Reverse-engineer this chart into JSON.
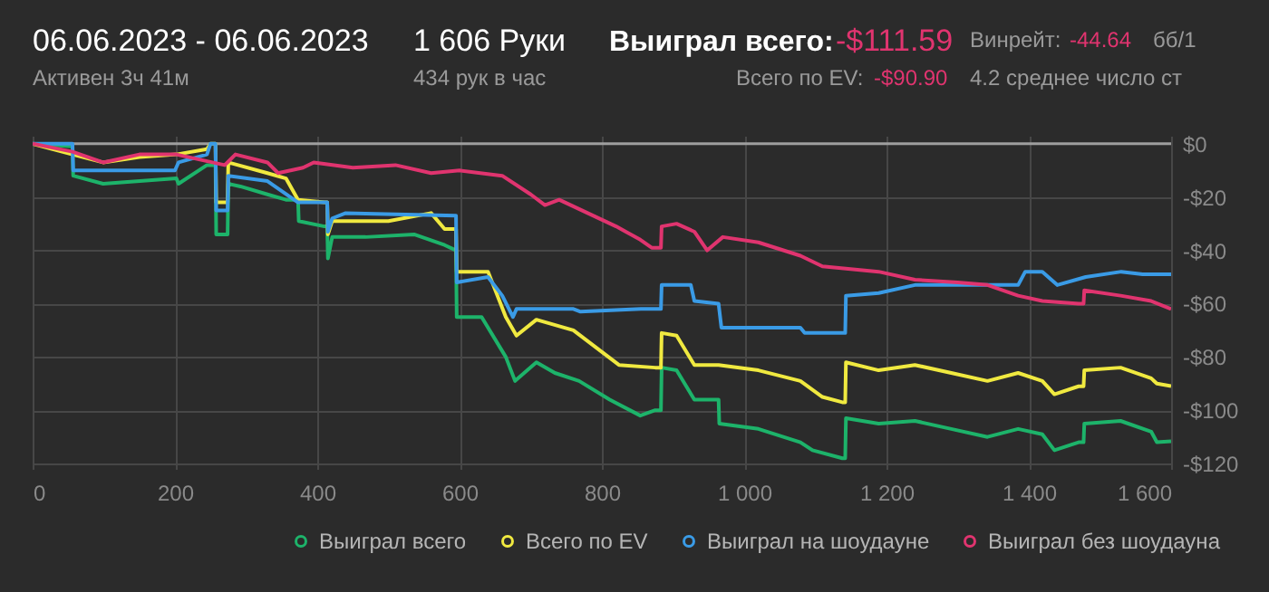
{
  "chart_data": {
    "type": "line",
    "title": "06.06.2023 - 06.06.2023",
    "subtitle": "Активен 3ч 41м",
    "annotations": [
      "1 606 Руки",
      "434 рук в час",
      "Выиграл всего:",
      "-$111.59",
      "Всего по EV:",
      "-$90.90",
      "Винрейт:",
      "-44.64",
      "бб/1",
      "4.2 среднее число ст"
    ],
    "xlim": [
      0,
      1600
    ],
    "xticks": [
      0,
      200,
      400,
      600,
      800,
      {
        "value": 1000,
        "label": "1 000"
      },
      {
        "value": 1200,
        "label": "1 200"
      },
      {
        "value": 1400,
        "label": "1 400"
      },
      {
        "value": 1600,
        "label": "1 600"
      }
    ],
    "ylim": [
      -122,
      3
    ],
    "yticks": [
      {
        "value": 0,
        "label": "$0"
      },
      {
        "value": -20,
        "label": "-$20"
      },
      {
        "value": -40,
        "label": "-$40"
      },
      {
        "value": -60,
        "label": "-$60"
      },
      {
        "value": -80,
        "label": "-$80"
      },
      {
        "value": -100,
        "label": "-$100"
      },
      {
        "value": -120,
        "label": "-$120"
      }
    ],
    "grid": true,
    "legend": "bottom",
    "marker": "none",
    "line_style": "solid",
    "ref_lines": [
      {
        "axis": "y",
        "value": 0,
        "color": "#9e9e9e"
      }
    ],
    "series": [
      {
        "name": "Выиграл всего",
        "color": "#1db36a",
        "x": [
          0,
          56,
          57,
          99,
          202,
          205,
          245,
          257,
          258,
          274,
          275,
          292,
          330,
          356,
          373,
          374,
          410,
          414,
          415,
          421,
          468,
          536,
          579,
          595,
          596,
          631,
          665,
          678,
          708,
          734,
          768,
          811,
          854,
          875,
          883,
          884,
          905,
          930,
          964,
          965,
          1020,
          1079,
          1096,
          1138,
          1142,
          1143,
          1189,
          1240,
          1291,
          1342,
          1385,
          1419,
          1436,
          1470,
          1477,
          1478,
          1529,
          1572,
          1580,
          1600
        ],
        "values": [
          0,
          -1,
          -12,
          -15,
          -13,
          -15,
          -8,
          -8,
          -34,
          -34,
          -15,
          -16,
          -19,
          -21,
          -21,
          -29,
          -31,
          -31,
          -43,
          -35,
          -35,
          -34,
          -38,
          -40,
          -65,
          -65,
          -80,
          -89,
          -82,
          -86,
          -89,
          -96,
          -102,
          -100,
          -100,
          -84,
          -85,
          -96,
          -96,
          -105,
          -107,
          -112,
          -115,
          -118,
          -118,
          -103,
          -105,
          -104,
          -107,
          -110,
          -107,
          -109,
          -115,
          -112,
          -112,
          -105,
          -104,
          -108,
          -112,
          -111.6
        ]
      },
      {
        "name": "Всего по EV",
        "color": "#f0e940",
        "x": [
          0,
          56,
          99,
          150,
          202,
          245,
          250,
          257,
          258,
          274,
          275,
          330,
          356,
          373,
          410,
          414,
          415,
          421,
          500,
          560,
          579,
          595,
          596,
          640,
          665,
          680,
          708,
          760,
          824,
          875,
          883,
          884,
          905,
          930,
          964,
          1020,
          1079,
          1110,
          1138,
          1142,
          1143,
          1189,
          1240,
          1291,
          1342,
          1385,
          1419,
          1436,
          1470,
          1477,
          1478,
          1529,
          1572,
          1580,
          1600
        ],
        "values": [
          0,
          -4,
          -7,
          -5,
          -4,
          -2,
          0,
          0,
          -22,
          -22,
          -7,
          -11,
          -13,
          -21,
          -22,
          -22,
          -34,
          -29,
          -29,
          -26,
          -32,
          -32,
          -48,
          -48,
          -65,
          -72,
          -66,
          -70,
          -83,
          -84,
          -84,
          -71,
          -72,
          -83,
          -83,
          -85,
          -89,
          -95,
          -97,
          -97,
          -82,
          -85,
          -83,
          -86,
          -89,
          -86,
          -89,
          -94,
          -91,
          -91,
          -85,
          -84,
          -88,
          -90,
          -90.9
        ]
      },
      {
        "name": "Выиграл на шоудауне",
        "color": "#3a9be6",
        "x": [
          0,
          56,
          57,
          200,
          205,
          245,
          250,
          257,
          258,
          274,
          275,
          330,
          373,
          410,
          414,
          415,
          421,
          440,
          595,
          596,
          640,
          660,
          675,
          680,
          760,
          770,
          855,
          875,
          883,
          884,
          925,
          930,
          964,
          968,
          1079,
          1085,
          1138,
          1142,
          1143,
          1189,
          1240,
          1385,
          1395,
          1419,
          1440,
          1480,
          1530,
          1560,
          1600
        ],
        "values": [
          0,
          0,
          -10,
          -10,
          -7,
          -4,
          0,
          0,
          -25,
          -25,
          -12,
          -14,
          -22,
          -22,
          -22,
          -33,
          -28,
          -26,
          -27,
          -52,
          -50,
          -57,
          -65,
          -62,
          -62,
          -63,
          -62,
          -62,
          -62,
          -53,
          -53,
          -59,
          -60,
          -69,
          -69,
          -71,
          -71,
          -71,
          -57,
          -56,
          -53,
          -53,
          -48,
          -48,
          -53,
          -50,
          -48,
          -49,
          -49
        ]
      },
      {
        "name": "Выиграл без шоудауна",
        "color": "#e0346f",
        "x": [
          0,
          56,
          99,
          150,
          202,
          270,
          285,
          330,
          345,
          380,
          395,
          450,
          510,
          560,
          600,
          660,
          700,
          720,
          740,
          780,
          820,
          854,
          870,
          883,
          884,
          905,
          930,
          948,
          970,
          1020,
          1079,
          1110,
          1189,
          1240,
          1300,
          1342,
          1385,
          1419,
          1470,
          1477,
          1478,
          1529,
          1572,
          1600
        ],
        "values": [
          0,
          -3,
          -7,
          -4,
          -4,
          -8,
          -4,
          -7,
          -11,
          -9,
          -7,
          -9,
          -8,
          -11,
          -10,
          -12,
          -19,
          -23,
          -21,
          -26,
          -31,
          -36,
          -39,
          -39,
          -31,
          -30,
          -33,
          -40,
          -35,
          -37,
          -42,
          -46,
          -48,
          -51,
          -52,
          -53,
          -57,
          -59,
          -60,
          -60,
          -55,
          -57,
          -59,
          -62
        ]
      }
    ]
  }
}
